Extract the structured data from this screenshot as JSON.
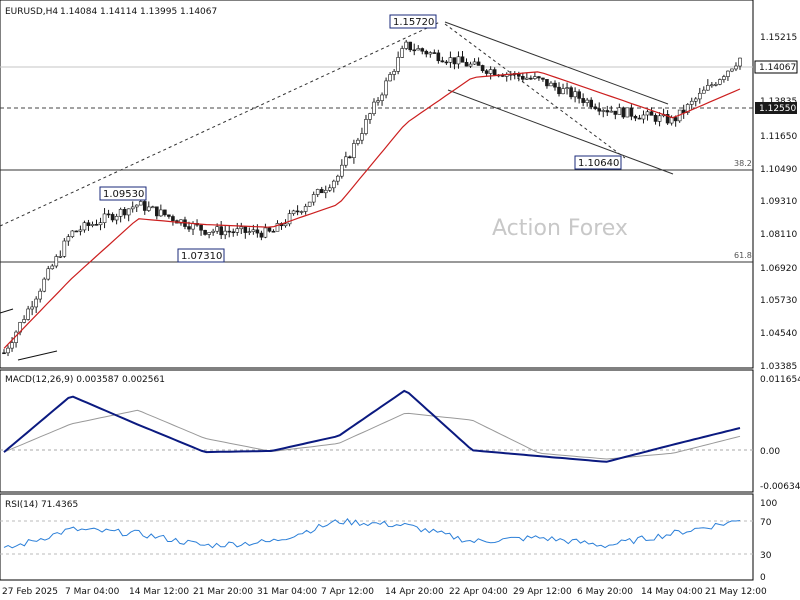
{
  "header": {
    "symbol": "EURUSD,H4",
    "open": "1.14084",
    "high": "1.14114",
    "low": "1.13995",
    "close": "1.14067"
  },
  "watermark": "Action Forex",
  "colors": {
    "candle": "#1a1a1a",
    "ma": "#cc1f1f",
    "macd": "#0b1a80",
    "macd_signal": "#999999",
    "rsi": "#2b7fd8",
    "price_box_bg": "#ffffff",
    "grid_dash": "#888888"
  },
  "price_panel": {
    "y_ticks": [
      "1.15215",
      "1.13835",
      "1.11650",
      "1.10490",
      "1.09310",
      "1.08110",
      "1.06920",
      "1.05730",
      "1.04540",
      "1.03385"
    ],
    "current_price": "1.14067",
    "level_price": "1.12550",
    "annotations": [
      {
        "text": "1.15720",
        "kind": "high"
      },
      {
        "text": "1.09530",
        "kind": "high"
      },
      {
        "text": "1.07310",
        "kind": "low"
      },
      {
        "text": "1.10640",
        "kind": "low"
      }
    ],
    "fib_levels": [
      {
        "label": "38.2",
        "price": 1.1045
      },
      {
        "label": "61.8",
        "price": 1.0707
      }
    ]
  },
  "macd_panel": {
    "title": "MACD(12,26,9) 0.003587 0.002561",
    "y_ticks": [
      "0.011654",
      "0.00",
      "-0.006345"
    ]
  },
  "rsi_panel": {
    "title": "RSI(14) 71.4365",
    "y_ticks": [
      "100",
      "70",
      "30",
      "0"
    ]
  },
  "x_axis": {
    "labels": [
      "27 Feb 2025",
      "7 Mar 04:00",
      "14 Mar 12:00",
      "21 Mar 20:00",
      "31 Mar 04:00",
      "7 Apr 12:00",
      "14 Apr 20:00",
      "22 Apr 04:00",
      "29 Apr 12:00",
      "6 May 20:00",
      "14 May 04:00",
      "21 May 12:00"
    ]
  },
  "chart_data": {
    "type": "line",
    "instrument": "EURUSD",
    "timeframe": "H4",
    "categories": [
      "27 Feb 2025",
      "7 Mar 04:00",
      "14 Mar 12:00",
      "21 Mar 20:00",
      "31 Mar 04:00",
      "7 Apr 12:00",
      "14 Apr 20:00",
      "22 Apr 04:00",
      "29 Apr 12:00",
      "6 May 20:00",
      "14 May 04:00",
      "21 May 12:00"
    ],
    "price_series": [
      {
        "name": "close",
        "values": [
          1.0385,
          1.08,
          1.09,
          1.081,
          1.08,
          1.1,
          1.145,
          1.138,
          1.133,
          1.123,
          1.119,
          1.1407
        ]
      },
      {
        "name": "ma",
        "values": [
          1.04,
          1.064,
          1.085,
          1.083,
          1.082,
          1.09,
          1.118,
          1.134,
          1.136,
          1.128,
          1.12,
          1.13
        ]
      }
    ],
    "key_levels": [
      {
        "label": "1.15720",
        "value": 1.1572
      },
      {
        "label": "1.09530",
        "value": 1.0953
      },
      {
        "label": "1.07310",
        "value": 1.0731
      },
      {
        "label": "1.10640",
        "value": 1.1064
      },
      {
        "label": "1.12550",
        "value": 1.1255
      }
    ],
    "ylim": [
      1.0339,
      1.1595
    ],
    "macd": {
      "ylim": [
        -0.0074,
        0.0128
      ],
      "values": [
        -0.0008,
        0.009,
        0.004,
        -0.0008,
        -0.0006,
        0.002,
        0.01,
        -0.0005,
        -0.0015,
        -0.0025,
        0.0005,
        0.0034
      ],
      "current": 0.003587,
      "signal_current": 0.002561
    },
    "rsi": {
      "ylim": [
        0,
        100
      ],
      "values": [
        35,
        60,
        55,
        40,
        45,
        70,
        65,
        45,
        50,
        40,
        55,
        71
      ],
      "current": 71.4365
    }
  }
}
